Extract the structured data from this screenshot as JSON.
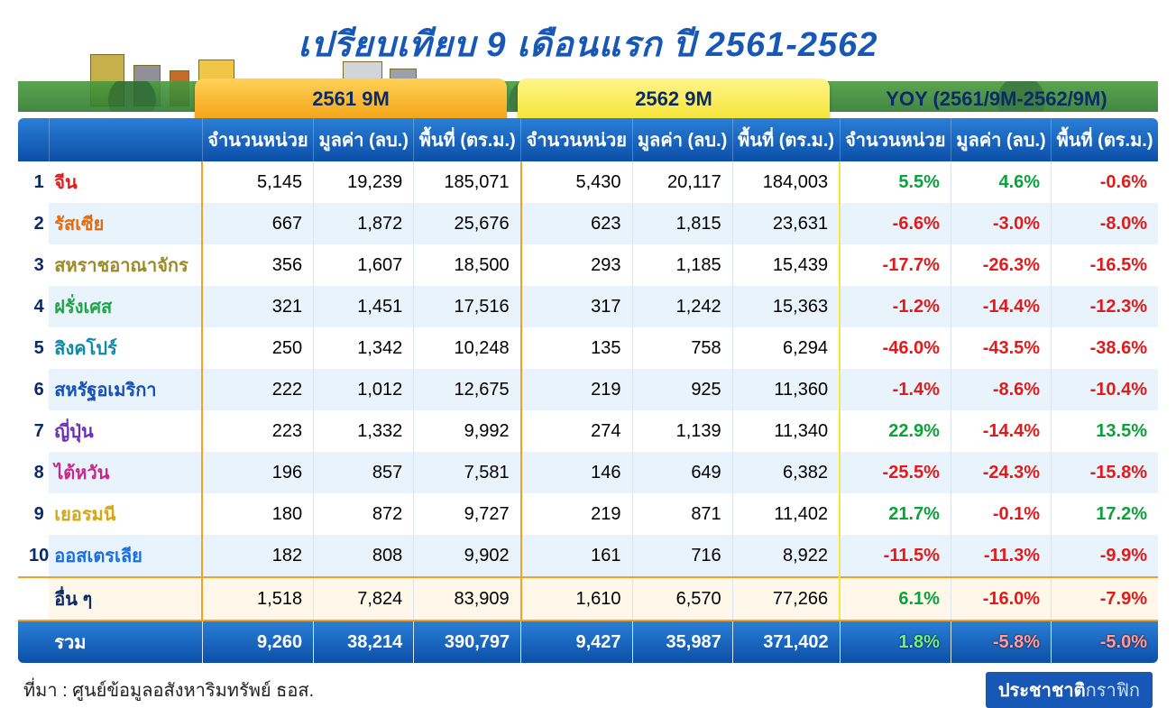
{
  "title": "เปรียบเทียบ 9 เดือนแรก ปี 2561-2562",
  "tabs": {
    "y1": "2561 9M",
    "y2": "2562 9M",
    "yoy": "YOY (2561/9M-2562/9M)"
  },
  "headers": {
    "blank": "",
    "units": "จำนวนหน่วย",
    "value": "มูลค่า (ลบ.)",
    "area": "พื้นที่ (ตร.ม.)"
  },
  "country_colors": [
    "#e11b1b",
    "#e46a0f",
    "#9b8a25",
    "#1ea54a",
    "#0e8aa8",
    "#1350b8",
    "#6a2fb8",
    "#c7288a",
    "#d6a70f",
    "#1b6de0"
  ],
  "rows": [
    {
      "rank": "1",
      "country": "จีน",
      "y1": [
        "5,145",
        "19,239",
        "185,071"
      ],
      "y2": [
        "5,430",
        "20,117",
        "184,003"
      ],
      "yoy": [
        {
          "v": "5.5%",
          "s": 1
        },
        {
          "v": "4.6%",
          "s": 1
        },
        {
          "v": "-0.6%",
          "s": -1
        }
      ]
    },
    {
      "rank": "2",
      "country": "รัสเซีย",
      "y1": [
        "667",
        "1,872",
        "25,676"
      ],
      "y2": [
        "623",
        "1,815",
        "23,631"
      ],
      "yoy": [
        {
          "v": "-6.6%",
          "s": -1
        },
        {
          "v": "-3.0%",
          "s": -1
        },
        {
          "v": "-8.0%",
          "s": -1
        }
      ]
    },
    {
      "rank": "3",
      "country": "สหราชอาณาจักร",
      "y1": [
        "356",
        "1,607",
        "18,500"
      ],
      "y2": [
        "293",
        "1,185",
        "15,439"
      ],
      "yoy": [
        {
          "v": "-17.7%",
          "s": -1
        },
        {
          "v": "-26.3%",
          "s": -1
        },
        {
          "v": "-16.5%",
          "s": -1
        }
      ]
    },
    {
      "rank": "4",
      "country": "ฝรั่งเศส",
      "y1": [
        "321",
        "1,451",
        "17,516"
      ],
      "y2": [
        "317",
        "1,242",
        "15,363"
      ],
      "yoy": [
        {
          "v": "-1.2%",
          "s": -1
        },
        {
          "v": "-14.4%",
          "s": -1
        },
        {
          "v": "-12.3%",
          "s": -1
        }
      ]
    },
    {
      "rank": "5",
      "country": "สิงคโปร์",
      "y1": [
        "250",
        "1,342",
        "10,248"
      ],
      "y2": [
        "135",
        "758",
        "6,294"
      ],
      "yoy": [
        {
          "v": "-46.0%",
          "s": -1
        },
        {
          "v": "-43.5%",
          "s": -1
        },
        {
          "v": "-38.6%",
          "s": -1
        }
      ]
    },
    {
      "rank": "6",
      "country": "สหรัฐอเมริกา",
      "y1": [
        "222",
        "1,012",
        "12,675"
      ],
      "y2": [
        "219",
        "925",
        "11,360"
      ],
      "yoy": [
        {
          "v": "-1.4%",
          "s": -1
        },
        {
          "v": "-8.6%",
          "s": -1
        },
        {
          "v": "-10.4%",
          "s": -1
        }
      ]
    },
    {
      "rank": "7",
      "country": "ญี่ปุ่น",
      "y1": [
        "223",
        "1,332",
        "9,992"
      ],
      "y2": [
        "274",
        "1,139",
        "11,340"
      ],
      "yoy": [
        {
          "v": "22.9%",
          "s": 1
        },
        {
          "v": "-14.4%",
          "s": -1
        },
        {
          "v": "13.5%",
          "s": 1
        }
      ]
    },
    {
      "rank": "8",
      "country": "ไต้หวัน",
      "y1": [
        "196",
        "857",
        "7,581"
      ],
      "y2": [
        "146",
        "649",
        "6,382"
      ],
      "yoy": [
        {
          "v": "-25.5%",
          "s": -1
        },
        {
          "v": "-24.3%",
          "s": -1
        },
        {
          "v": "-15.8%",
          "s": -1
        }
      ]
    },
    {
      "rank": "9",
      "country": "เยอรมนี",
      "y1": [
        "180",
        "872",
        "9,727"
      ],
      "y2": [
        "219",
        "871",
        "11,402"
      ],
      "yoy": [
        {
          "v": "21.7%",
          "s": 1
        },
        {
          "v": "-0.1%",
          "s": -1
        },
        {
          "v": "17.2%",
          "s": 1
        }
      ]
    },
    {
      "rank": "10",
      "country": "ออสเตรเลีย",
      "y1": [
        "182",
        "808",
        "9,902"
      ],
      "y2": [
        "161",
        "716",
        "8,922"
      ],
      "yoy": [
        {
          "v": "-11.5%",
          "s": -1
        },
        {
          "v": "-11.3%",
          "s": -1
        },
        {
          "v": "-9.9%",
          "s": -1
        }
      ]
    }
  ],
  "other": {
    "label": "อื่น ๆ",
    "y1": [
      "1,518",
      "7,824",
      "83,909"
    ],
    "y2": [
      "1,610",
      "6,570",
      "77,266"
    ],
    "yoy": [
      {
        "v": "6.1%",
        "s": 1
      },
      {
        "v": "-16.0%",
        "s": -1
      },
      {
        "v": "-7.9%",
        "s": -1
      }
    ]
  },
  "total": {
    "label": "รวม",
    "y1": [
      "9,260",
      "38,214",
      "390,797"
    ],
    "y2": [
      "9,427",
      "35,987",
      "371,402"
    ],
    "yoy": [
      {
        "v": "1.8%",
        "s": 1
      },
      {
        "v": "-5.8%",
        "s": -1
      },
      {
        "v": "-5.0%",
        "s": -1
      }
    ]
  },
  "source": "ที่มา : ศูนย์ข้อมูลอสังหาริมทรัพย์ ธอส.",
  "credit": {
    "a": "ประชาชาติ",
    "b": "กราฟิก"
  },
  "styling": {
    "title_color": "#1757b6",
    "header_gradient": [
      "#2a7fd6",
      "#0c4fa8"
    ],
    "tab_y1_gradient": [
      "#ffd257",
      "#f5a61a"
    ],
    "tab_y2_gradient": [
      "#fff489",
      "#f6e63a"
    ],
    "row_even_bg": "#e9f3fb",
    "row_odd_bg": "#ffffff",
    "other_border": "#f3a027",
    "positive": "#0aa23a",
    "negative": "#e11b1b",
    "font_size_body": 20,
    "font_size_title": 38
  }
}
